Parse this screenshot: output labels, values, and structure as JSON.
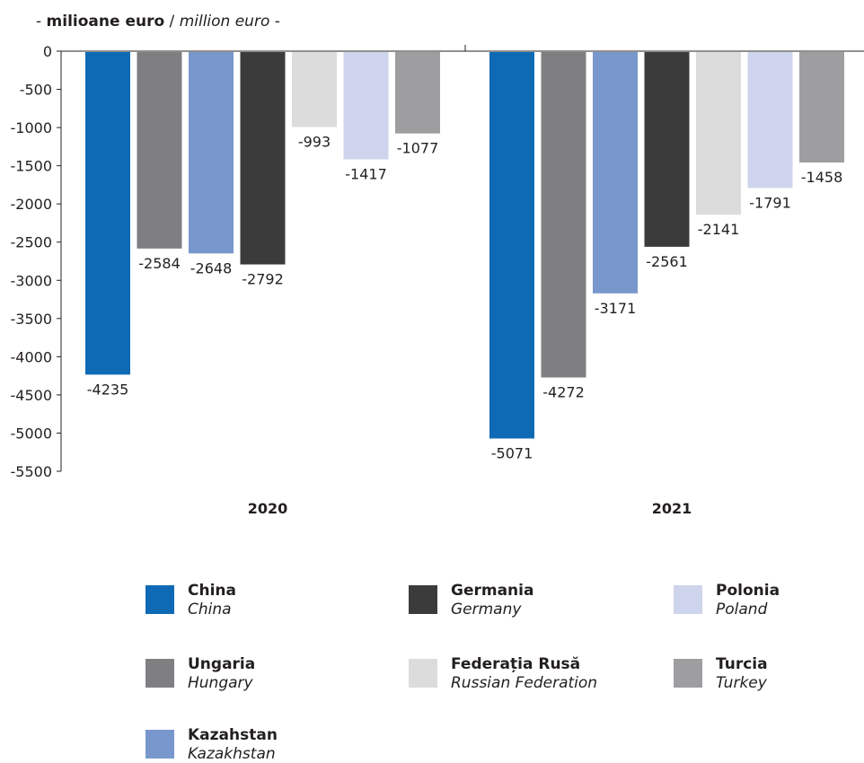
{
  "unit_label": {
    "prefix": "- ",
    "ro": "milioane euro",
    "sep": " / ",
    "en": "million euro",
    "suffix": " -"
  },
  "chart_data": {
    "type": "bar",
    "categories": [
      "2020",
      "2021"
    ],
    "ylim": [
      -5500,
      0
    ],
    "yticks": [
      0,
      -500,
      -1000,
      -1500,
      -2000,
      -2500,
      -3000,
      -3500,
      -4000,
      -4500,
      -5000,
      -5500
    ],
    "grid": false,
    "legend_position": "bottom",
    "series": [
      {
        "name": "China",
        "name_en": "China",
        "color": "#0e6ab5",
        "values": [
          -4235,
          -5071
        ]
      },
      {
        "name": "Ungaria",
        "name_en": "Hungary",
        "color": "#7f7f82",
        "values": [
          -2584,
          -4272
        ]
      },
      {
        "name": "Kazahstan",
        "name_en": "Kazakhstan",
        "color": "#7897cc",
        "values": [
          -2648,
          -3171
        ]
      },
      {
        "name": "Germania",
        "name_en": "Germany",
        "color": "#3b3b3c",
        "values": [
          -2792,
          -2561
        ]
      },
      {
        "name": "Federația Rusă",
        "name_en": "Russian Federation",
        "color": "#dcdcdd",
        "values": [
          -993,
          -2141
        ]
      },
      {
        "name": "Polonia",
        "name_en": "Poland",
        "color": "#cdd4ec",
        "values": [
          -1417,
          -1791
        ]
      },
      {
        "name": "Turcia",
        "name_en": "Turkey",
        "color": "#9e9ea1",
        "values": [
          -1077,
          -1458
        ]
      }
    ]
  }
}
